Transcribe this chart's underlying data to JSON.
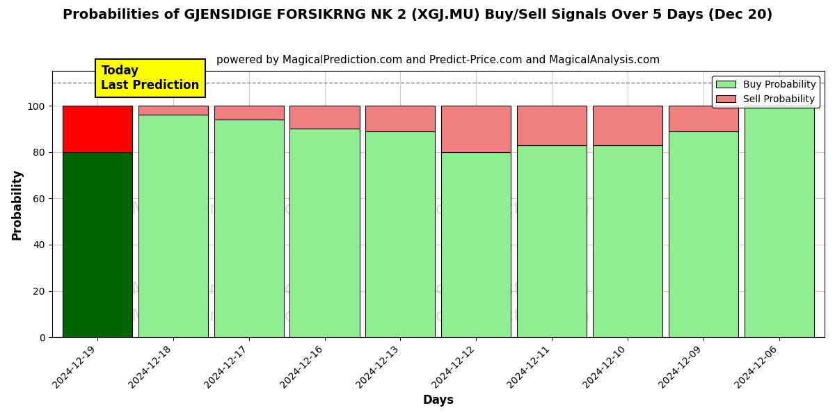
{
  "title": "Probabilities of GJENSIDIGE FORSIKRNG NK 2 (XGJ.MU) Buy/Sell Signals Over 5 Days (Dec 20)",
  "subtitle": "powered by MagicalPrediction.com and Predict-Price.com and MagicalAnalysis.com",
  "xlabel": "Days",
  "ylabel": "Probability",
  "categories": [
    "2024-12-19",
    "2024-12-18",
    "2024-12-17",
    "2024-12-16",
    "2024-12-13",
    "2024-12-12",
    "2024-12-11",
    "2024-12-10",
    "2024-12-09",
    "2024-12-06"
  ],
  "buy_values": [
    80,
    96,
    94,
    90,
    89,
    80,
    83,
    83,
    89,
    100
  ],
  "sell_values": [
    20,
    4,
    6,
    10,
    11,
    20,
    17,
    17,
    11,
    0
  ],
  "today_buy_color": "#006400",
  "today_sell_color": "#FF0000",
  "buy_color": "#90EE90",
  "sell_color": "#F08080",
  "ylim": [
    0,
    115
  ],
  "yticks": [
    0,
    20,
    40,
    60,
    80,
    100
  ],
  "dashed_line_y": 110,
  "today_label_text": "Today\nLast Prediction",
  "today_label_bg": "#FFFF00",
  "legend_buy": "Buy Probability",
  "legend_sell": "Sell Probability",
  "title_fontsize": 14,
  "subtitle_fontsize": 11,
  "axis_label_fontsize": 12,
  "tick_fontsize": 10,
  "bar_width": 0.92,
  "background_color": "#FFFFFF",
  "grid_color": "#CCCCCC",
  "watermark_color": "#DDDDDD"
}
